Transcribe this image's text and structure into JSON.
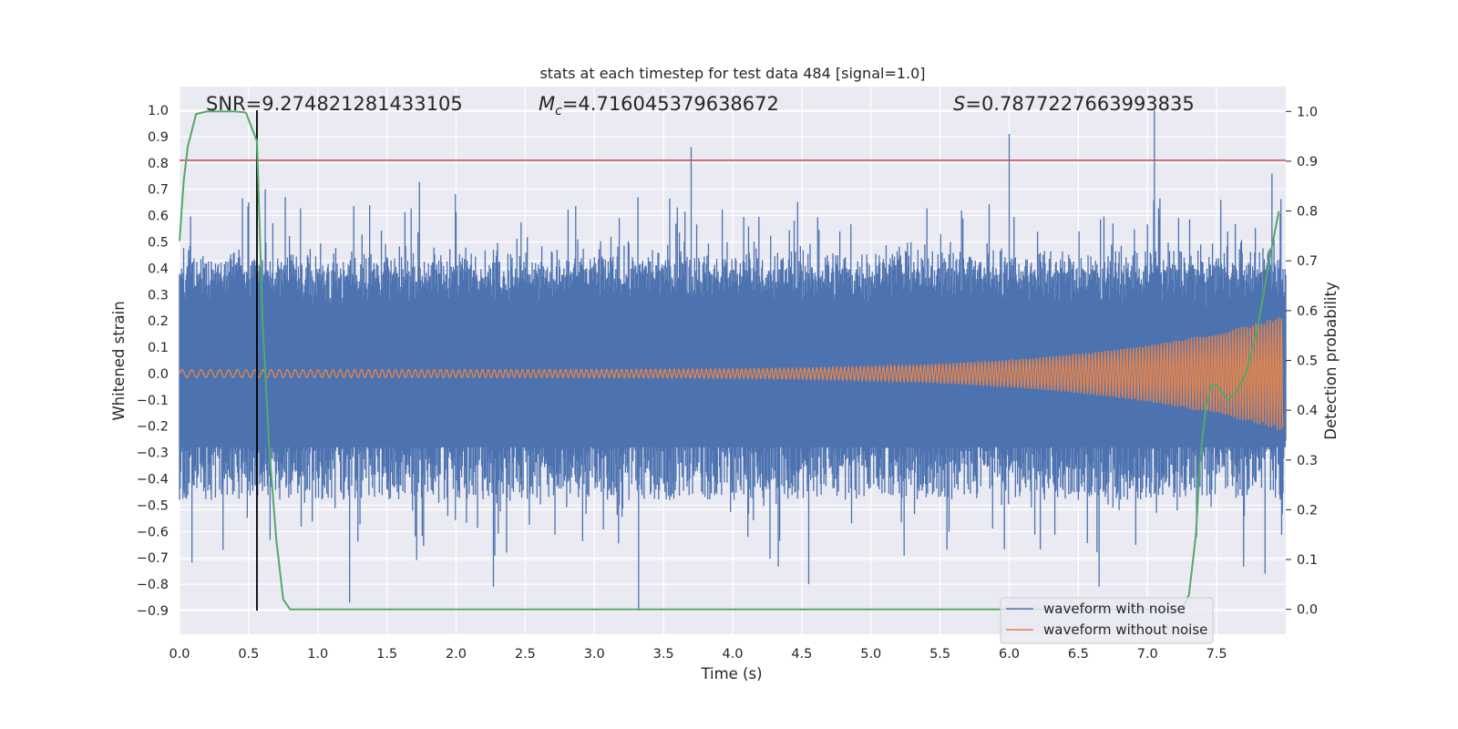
{
  "chart_data": {
    "type": "line",
    "title": "stats at each timestep for test data 484 [signal=1.0]",
    "xlabel": "Time (s)",
    "ylabel": "Whitened strain",
    "y2label": "Detection probability",
    "xlim": [
      0.0,
      8.0
    ],
    "ylim": [
      -0.99,
      1.09
    ],
    "y2lim": [
      -0.05,
      1.05
    ],
    "xticks": [
      0.0,
      0.5,
      1.0,
      1.5,
      2.0,
      2.5,
      3.0,
      3.5,
      4.0,
      4.5,
      5.0,
      5.5,
      6.0,
      6.5,
      7.0,
      7.5
    ],
    "xtick_labels": [
      "0.0",
      "0.5",
      "1.0",
      "1.5",
      "2.0",
      "2.5",
      "3.0",
      "3.5",
      "4.0",
      "4.5",
      "5.0",
      "5.5",
      "6.0",
      "6.5",
      "7.0",
      "7.5"
    ],
    "yticks": [
      1.0,
      0.9,
      0.8,
      0.7,
      0.6,
      0.5,
      0.4,
      0.3,
      0.2,
      0.1,
      0.0,
      -0.1,
      -0.2,
      -0.3,
      -0.4,
      -0.5,
      -0.6,
      -0.7,
      -0.8,
      -0.9
    ],
    "ytick_labels": [
      "1.0",
      "0.9",
      "0.8",
      "0.7",
      "0.6",
      "0.5",
      "0.4",
      "0.3",
      "0.2",
      "0.1",
      "0.0",
      "−0.1",
      "−0.2",
      "−0.3",
      "−0.4",
      "−0.5",
      "−0.6",
      "−0.7",
      "−0.8",
      "−0.9"
    ],
    "y2ticks": [
      1.0,
      0.9,
      0.8,
      0.7,
      0.6,
      0.5,
      0.4,
      0.3,
      0.2,
      0.1,
      0.0
    ],
    "y2tick_labels": [
      "1.0",
      "0.9",
      "0.8",
      "0.7",
      "0.6",
      "0.5",
      "0.4",
      "0.3",
      "0.2",
      "0.1",
      "0.0"
    ],
    "annotations": {
      "snr": "SNR=9.274821281433105",
      "mc_symbol": "M",
      "mc_sub": "c",
      "mc_value": "=4.716045379638672",
      "s_symbol": "S",
      "s_value": "=0.7877227663993835"
    },
    "grid": true,
    "legend_position": "lower-right",
    "threshold_line": {
      "value": 0.81,
      "color": "#c44e52"
    },
    "vertical_marker": {
      "x": 0.56,
      "y_from": -0.9,
      "y_to": 1.0,
      "color": "#000000"
    },
    "series": [
      {
        "name": "waveform with noise",
        "color": "#4c72b0",
        "axis": "left",
        "style": "dense noise trace",
        "x_range": [
          0.0,
          8.0
        ],
        "typical_range": [
          -0.4,
          0.45
        ],
        "peaks_high": [
          [
            0.5,
            0.65
          ],
          [
            0.62,
            0.7
          ],
          [
            3.7,
            0.86
          ],
          [
            6.0,
            0.91
          ],
          [
            7.05,
            1.0
          ],
          [
            7.9,
            0.76
          ]
        ],
        "peaks_low": [
          [
            1.23,
            -0.87
          ],
          [
            2.27,
            -0.81
          ],
          [
            3.32,
            -0.9
          ],
          [
            4.55,
            -0.8
          ],
          [
            6.65,
            -0.81
          ],
          [
            7.85,
            -0.76
          ]
        ]
      },
      {
        "name": "waveform without noise",
        "color": "#dd8452",
        "axis": "left",
        "style": "chirp",
        "amplitude_start": 0.015,
        "amplitude_end": 0.22,
        "x_range": [
          0.0,
          7.98
        ]
      },
      {
        "name": "detection probability",
        "color": "#55a868",
        "axis": "right",
        "x": [
          0.0,
          0.03,
          0.06,
          0.12,
          0.2,
          0.3,
          0.4,
          0.48,
          0.56,
          0.6,
          0.65,
          0.7,
          0.75,
          0.8,
          7.0,
          7.25,
          7.3,
          7.35,
          7.38,
          7.42,
          7.46,
          7.5,
          7.58,
          7.65,
          7.72,
          7.8,
          7.88,
          7.95
        ],
        "y": [
          0.74,
          0.86,
          0.93,
          0.995,
          1.0,
          1.0,
          1.0,
          0.998,
          0.94,
          0.58,
          0.32,
          0.14,
          0.02,
          0.0,
          0.0,
          0.0,
          0.03,
          0.15,
          0.3,
          0.4,
          0.45,
          0.45,
          0.42,
          0.44,
          0.48,
          0.57,
          0.7,
          0.8
        ]
      }
    ],
    "legend": [
      {
        "label": "waveform with noise",
        "color": "#4c72b0"
      },
      {
        "label": "waveform without noise",
        "color": "#dd8452"
      }
    ]
  }
}
